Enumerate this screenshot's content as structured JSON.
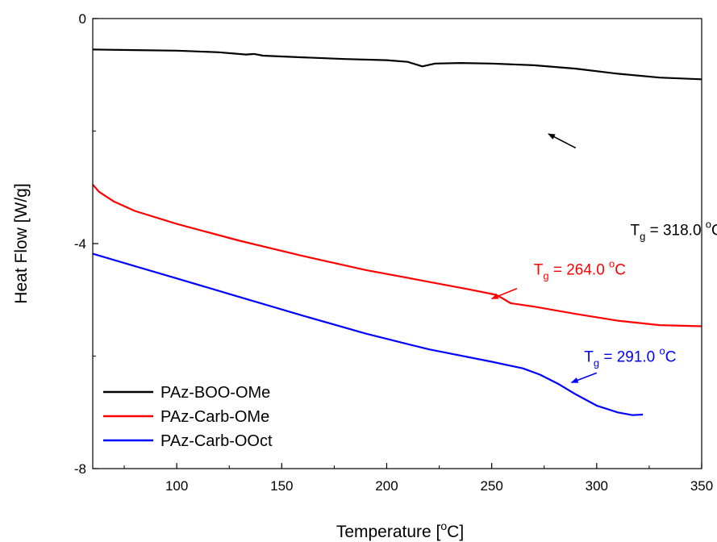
{
  "chart_data": {
    "type": "line",
    "xlabel": "Temperature [",
    "xlabel_sup": "o",
    "xlabel_end": "C]",
    "ylabel": "Heat Flow [W/g]",
    "xlim": [
      60,
      350
    ],
    "ylim": [
      -8,
      0
    ],
    "x_ticks": [
      {
        "value": 100,
        "label": "100"
      },
      {
        "value": 150,
        "label": "150"
      },
      {
        "value": 200,
        "label": "200"
      },
      {
        "value": 250,
        "label": "250"
      },
      {
        "value": 300,
        "label": "300"
      },
      {
        "value": 350,
        "label": "350"
      }
    ],
    "y_ticks": [
      {
        "value": 0,
        "label": "0"
      },
      {
        "value": -4,
        "label": "-4"
      },
      {
        "value": -8,
        "label": "-8"
      }
    ],
    "legend_position": "bottom-left",
    "series": [
      {
        "name": "PAz-BOO-OMe",
        "color": "#000000",
        "points": [
          [
            60,
            -0.55
          ],
          [
            80,
            -0.56
          ],
          [
            100,
            -0.57
          ],
          [
            120,
            -0.6
          ],
          [
            133,
            -0.64
          ],
          [
            137,
            -0.63
          ],
          [
            141,
            -0.66
          ],
          [
            160,
            -0.69
          ],
          [
            180,
            -0.72
          ],
          [
            200,
            -0.74
          ],
          [
            210,
            -0.77
          ],
          [
            217,
            -0.85
          ],
          [
            223,
            -0.8
          ],
          [
            235,
            -0.79
          ],
          [
            250,
            -0.8
          ],
          [
            270,
            -0.83
          ],
          [
            290,
            -0.89
          ],
          [
            310,
            -0.98
          ],
          [
            330,
            -1.05
          ],
          [
            350,
            -1.08
          ]
        ]
      },
      {
        "name": "PAz-Carb-OMe",
        "color": "#ff0000",
        "points": [
          [
            60,
            -2.95
          ],
          [
            63,
            -3.08
          ],
          [
            70,
            -3.25
          ],
          [
            80,
            -3.42
          ],
          [
            100,
            -3.65
          ],
          [
            130,
            -3.95
          ],
          [
            160,
            -4.22
          ],
          [
            190,
            -4.47
          ],
          [
            220,
            -4.68
          ],
          [
            240,
            -4.82
          ],
          [
            252,
            -4.91
          ],
          [
            255,
            -4.97
          ],
          [
            259,
            -5.06
          ],
          [
            270,
            -5.12
          ],
          [
            290,
            -5.25
          ],
          [
            310,
            -5.37
          ],
          [
            330,
            -5.45
          ],
          [
            350,
            -5.47
          ]
        ]
      },
      {
        "name": "PAz-Carb-OOct",
        "color": "#0000ff",
        "points": [
          [
            60,
            -4.18
          ],
          [
            80,
            -4.4
          ],
          [
            100,
            -4.62
          ],
          [
            130,
            -4.95
          ],
          [
            160,
            -5.28
          ],
          [
            190,
            -5.6
          ],
          [
            220,
            -5.88
          ],
          [
            250,
            -6.1
          ],
          [
            265,
            -6.22
          ],
          [
            273,
            -6.33
          ],
          [
            282,
            -6.5
          ],
          [
            290,
            -6.68
          ],
          [
            300,
            -6.88
          ],
          [
            310,
            -7.0
          ],
          [
            317,
            -7.05
          ],
          [
            322,
            -7.04
          ]
        ]
      }
    ],
    "annotations": [
      {
        "color": "#000000",
        "prefix": "T",
        "sub": "g",
        "value": " = 318.0 ",
        "sup": "o",
        "unit": "C",
        "text_at": [
          316,
          -3.85
        ],
        "arrow_from": [
          290,
          -2.3
        ],
        "arrow_to": [
          277,
          -2.05
        ]
      },
      {
        "color": "#ff0000",
        "prefix": "T",
        "sub": "g",
        "value": " = 264.0 ",
        "sup": "o",
        "unit": "C",
        "text_at": [
          270,
          -4.55
        ],
        "arrow_from": [
          262,
          -4.8
        ],
        "arrow_to": [
          250,
          -4.98
        ]
      },
      {
        "color": "#0000ff",
        "prefix": "T",
        "sub": "g",
        "value": " = 291.0 ",
        "sup": "o",
        "unit": "C",
        "text_at": [
          294,
          -6.1
        ],
        "arrow_from": [
          300,
          -6.3
        ],
        "arrow_to": [
          288,
          -6.47
        ]
      }
    ]
  }
}
